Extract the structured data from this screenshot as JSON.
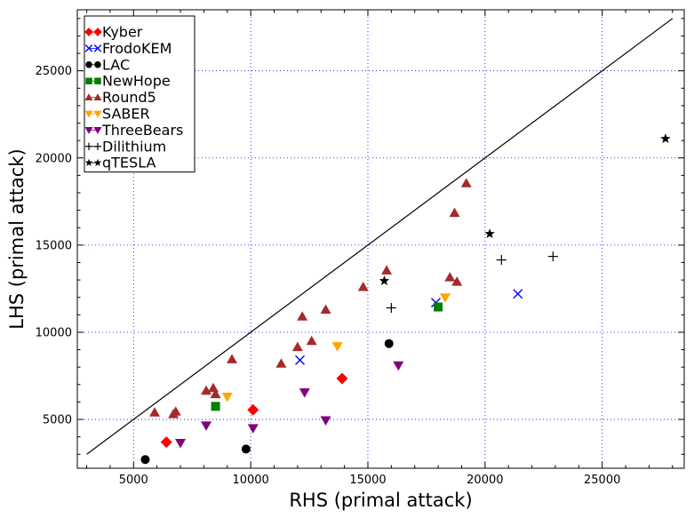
{
  "chart_data": {
    "type": "scatter",
    "xlabel": "RHS (primal attack)",
    "ylabel": "LHS (primal attack)",
    "xlim": [
      2600,
      28500
    ],
    "ylim": [
      2200,
      28500
    ],
    "xticks": [
      5000,
      10000,
      15000,
      20000,
      25000
    ],
    "yticks": [
      5000,
      10000,
      15000,
      20000,
      25000
    ],
    "grid": true,
    "legend_position": "top-left",
    "reference_line": {
      "x": [
        3000,
        28000
      ],
      "y": [
        3000,
        28000
      ],
      "color": "#000000"
    },
    "series": [
      {
        "name": "Kyber",
        "marker": "diamond",
        "color": "#ff0000",
        "points": [
          [
            6400,
            3700
          ],
          [
            10100,
            5550
          ],
          [
            13900,
            7350
          ]
        ]
      },
      {
        "name": "FrodoKEM",
        "marker": "x",
        "color": "#0000ff",
        "points": [
          [
            12100,
            8400
          ],
          [
            17900,
            11700
          ],
          [
            21400,
            12200
          ]
        ]
      },
      {
        "name": "LAC",
        "marker": "circle",
        "color": "#000000",
        "points": [
          [
            5500,
            2700
          ],
          [
            9800,
            3300
          ],
          [
            15900,
            9350
          ]
        ]
      },
      {
        "name": "NewHope",
        "marker": "square",
        "color": "#008000",
        "points": [
          [
            8500,
            5750
          ],
          [
            18000,
            11450
          ]
        ]
      },
      {
        "name": "Round5",
        "marker": "triangle-up",
        "color": "#a52a2a",
        "points": [
          [
            5900,
            5400
          ],
          [
            6700,
            5300
          ],
          [
            6800,
            5450
          ],
          [
            8100,
            6650
          ],
          [
            8400,
            6800
          ],
          [
            8500,
            6450
          ],
          [
            9200,
            8450
          ],
          [
            11300,
            8200
          ],
          [
            12000,
            9150
          ],
          [
            12200,
            10900
          ],
          [
            12600,
            9500
          ],
          [
            13200,
            11300
          ],
          [
            14800,
            12600
          ],
          [
            15800,
            13550
          ],
          [
            18500,
            13150
          ],
          [
            18700,
            16850
          ],
          [
            18800,
            12900
          ],
          [
            19200,
            18550
          ]
        ]
      },
      {
        "name": "SABER",
        "marker": "triangle-down",
        "color": "#ffa500",
        "points": [
          [
            9000,
            6300
          ],
          [
            13700,
            9200
          ],
          [
            18300,
            12000
          ]
        ]
      },
      {
        "name": "ThreeBears",
        "marker": "triangle-down",
        "color": "#800080",
        "points": [
          [
            7000,
            3650
          ],
          [
            8100,
            4650
          ],
          [
            10100,
            4500
          ],
          [
            12300,
            6550
          ],
          [
            13200,
            4950
          ],
          [
            16300,
            8100
          ]
        ]
      },
      {
        "name": "Dilithium",
        "marker": "plus",
        "color": "#000000",
        "points": [
          [
            16000,
            11400
          ],
          [
            20700,
            14150
          ],
          [
            22900,
            14350
          ]
        ]
      },
      {
        "name": "qTESLA",
        "marker": "star",
        "color": "#000000",
        "points": [
          [
            15700,
            12950
          ],
          [
            20200,
            15650
          ],
          [
            27700,
            21100
          ]
        ]
      }
    ]
  }
}
